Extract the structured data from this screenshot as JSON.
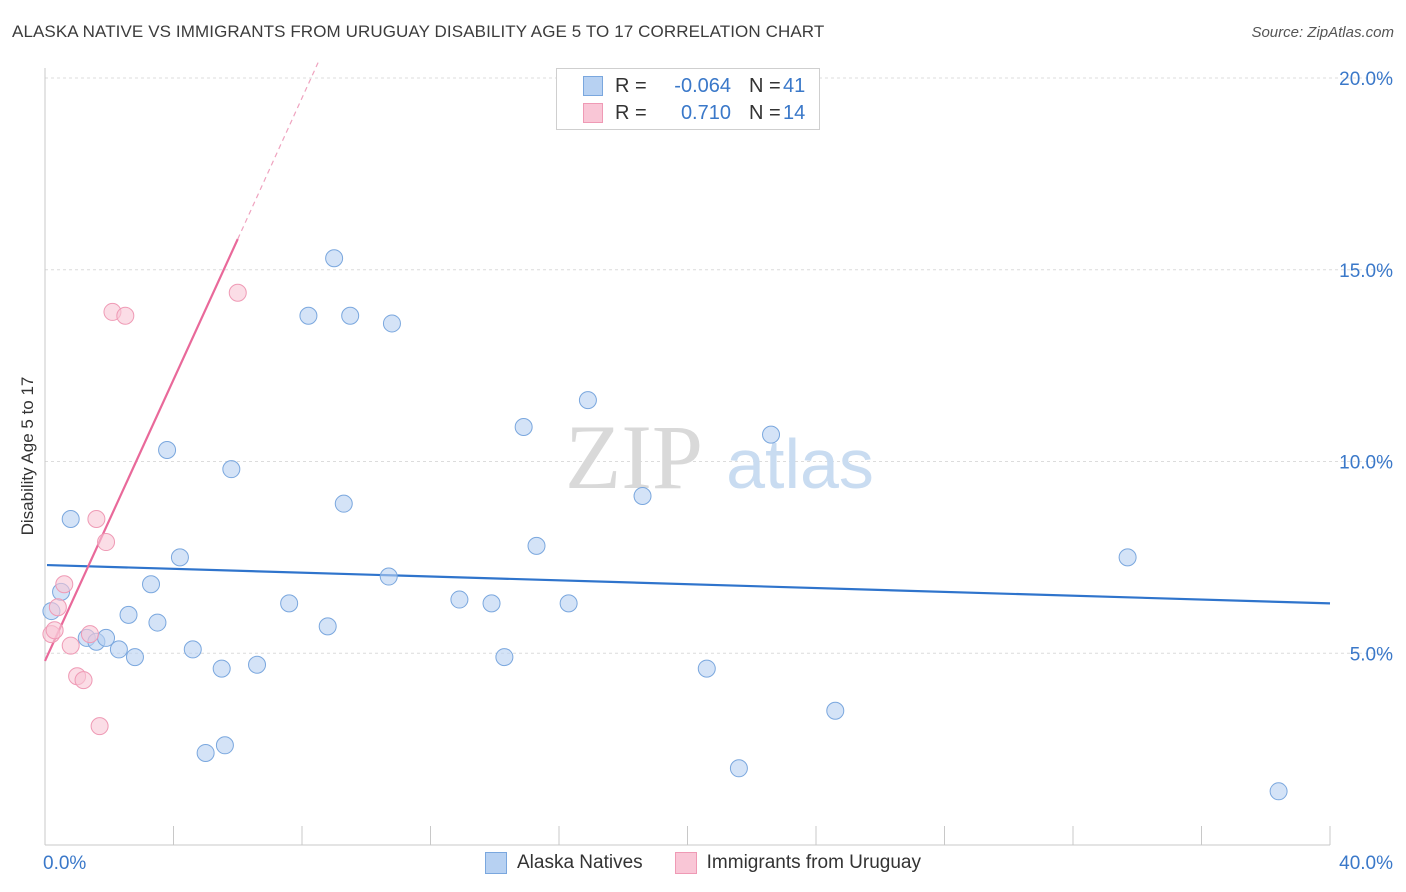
{
  "title": "ALASKA NATIVE VS IMMIGRANTS FROM URUGUAY DISABILITY AGE 5 TO 17 CORRELATION CHART",
  "source": "Source: ZipAtlas.com",
  "watermark": {
    "zip": "ZIP",
    "atlas": "atlas"
  },
  "legend": {
    "r_label": "R =",
    "n_label": "N =",
    "series": [
      {
        "name": "Alaska Natives",
        "r": "-0.064",
        "n": "41",
        "fill": "#b7d1f2",
        "stroke": "#7aa7de"
      },
      {
        "name": "Immigrants from Uruguay",
        "r": "0.710",
        "n": "14",
        "fill": "#f9c6d6",
        "stroke": "#ef9ab5"
      }
    ]
  },
  "chart_data": {
    "type": "scatter",
    "title": "ALASKA NATIVE VS IMMIGRANTS FROM URUGUAY DISABILITY AGE 5 TO 17 CORRELATION CHART",
    "xlabel": "",
    "ylabel": "Disability Age 5 to 17",
    "xlim": [
      0,
      40
    ],
    "ylim": [
      0,
      20
    ],
    "x_tick_labels": [
      "0.0%",
      "40.0%"
    ],
    "y_ticks": [
      5,
      10,
      15,
      20
    ],
    "y_tick_labels": [
      "5.0%",
      "10.0%",
      "15.0%",
      "20.0%"
    ],
    "grid": true,
    "series": [
      {
        "name": "Alaska Natives",
        "color": "#7aa7de",
        "points": [
          [
            0.2,
            6.1
          ],
          [
            0.5,
            6.6
          ],
          [
            0.8,
            8.5
          ],
          [
            1.3,
            5.4
          ],
          [
            1.6,
            5.3
          ],
          [
            1.9,
            5.4
          ],
          [
            2.3,
            5.1
          ],
          [
            2.6,
            6.0
          ],
          [
            2.8,
            4.9
          ],
          [
            3.3,
            6.8
          ],
          [
            3.5,
            5.8
          ],
          [
            3.8,
            10.3
          ],
          [
            4.2,
            7.5
          ],
          [
            4.6,
            5.1
          ],
          [
            5.6,
            2.6
          ],
          [
            5.0,
            2.4
          ],
          [
            5.5,
            4.6
          ],
          [
            5.8,
            9.8
          ],
          [
            6.6,
            4.7
          ],
          [
            7.6,
            6.3
          ],
          [
            8.2,
            13.8
          ],
          [
            8.8,
            5.7
          ],
          [
            9.0,
            15.3
          ],
          [
            9.3,
            8.9
          ],
          [
            9.5,
            13.8
          ],
          [
            10.7,
            7.0
          ],
          [
            10.8,
            13.6
          ],
          [
            12.9,
            6.4
          ],
          [
            13.9,
            6.3
          ],
          [
            14.3,
            4.9
          ],
          [
            14.9,
            10.9
          ],
          [
            15.3,
            7.8
          ],
          [
            16.3,
            6.3
          ],
          [
            16.9,
            11.6
          ],
          [
            18.6,
            9.1
          ],
          [
            20.6,
            4.6
          ],
          [
            21.6,
            2.0
          ],
          [
            22.6,
            10.7
          ],
          [
            24.6,
            3.5
          ],
          [
            33.7,
            7.5
          ],
          [
            38.4,
            1.4
          ]
        ],
        "trend": {
          "x": [
            0,
            40
          ],
          "y": [
            7.3,
            6.3
          ]
        }
      },
      {
        "name": "Immigrants from Uruguay",
        "color": "#ef9ab5",
        "points": [
          [
            0.2,
            5.5
          ],
          [
            0.3,
            5.6
          ],
          [
            0.4,
            6.2
          ],
          [
            0.6,
            6.8
          ],
          [
            0.8,
            5.2
          ],
          [
            1.0,
            4.4
          ],
          [
            1.2,
            4.3
          ],
          [
            1.4,
            5.5
          ],
          [
            1.6,
            8.5
          ],
          [
            1.7,
            3.1
          ],
          [
            1.9,
            7.9
          ],
          [
            2.1,
            13.9
          ],
          [
            2.5,
            13.8
          ],
          [
            6.0,
            14.4
          ]
        ],
        "trend": {
          "x": [
            0,
            6.0
          ],
          "y": [
            4.8,
            15.8
          ]
        },
        "trend_extension": {
          "x": [
            6.0,
            8.5
          ],
          "y": [
            15.8,
            20.4
          ]
        }
      }
    ]
  }
}
